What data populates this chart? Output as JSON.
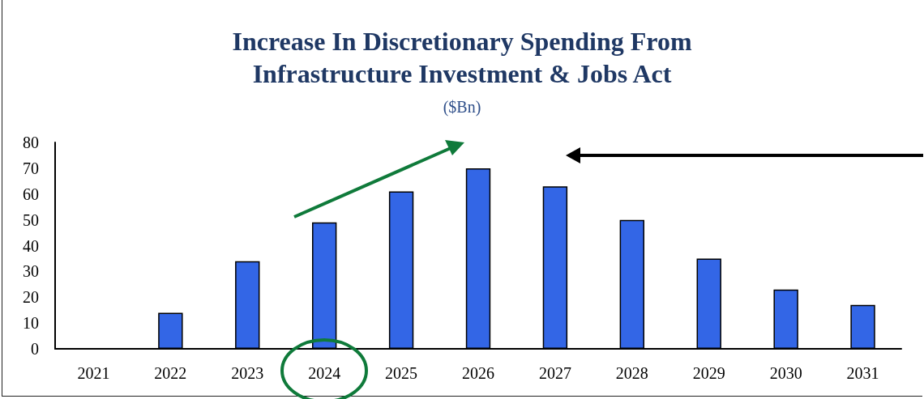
{
  "chart_data": {
    "type": "bar",
    "title": "Increase In Discretionary Spending From\nInfrastructure Investment & Jobs Act",
    "subtitle": "($Bn)",
    "categories": [
      "2021",
      "2022",
      "2023",
      "2024",
      "2025",
      "2026",
      "2027",
      "2028",
      "2029",
      "2030",
      "2031"
    ],
    "values": [
      null,
      14,
      34,
      49,
      61,
      70,
      63,
      50,
      35,
      23,
      17
    ],
    "color": "#3366e6",
    "ylim": [
      0,
      80
    ],
    "yticks": [
      0,
      10,
      20,
      30,
      40,
      50,
      60,
      70,
      80
    ],
    "grid": false
  }
}
